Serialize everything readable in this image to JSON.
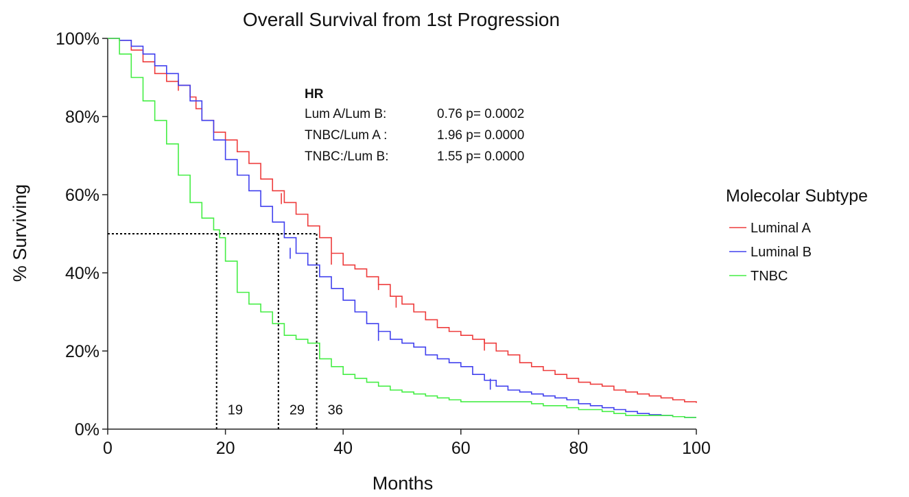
{
  "chart_data": {
    "type": "line",
    "title": "Overall Survival from 1st Progression",
    "xlabel": "Months",
    "ylabel": "% Surviving",
    "xlim": [
      0,
      100
    ],
    "ylim": [
      0,
      100
    ],
    "x_ticks": [
      0,
      20,
      40,
      60,
      80,
      100
    ],
    "y_ticks": [
      0,
      20,
      40,
      60,
      80,
      100
    ],
    "x_tick_labels": [
      "0",
      "20",
      "40",
      "60",
      "80",
      "100"
    ],
    "y_tick_labels": [
      "0%",
      "20%",
      "40%",
      "60%",
      "80%",
      "100%"
    ],
    "legend": {
      "title": "Molecolar Subtype",
      "position": "right"
    },
    "grid": false,
    "series": [
      {
        "name": "Luminal A",
        "color": "#ee3b3b",
        "points": [
          [
            0,
            100
          ],
          [
            2,
            99.5
          ],
          [
            4,
            97
          ],
          [
            6,
            94
          ],
          [
            8,
            91
          ],
          [
            10,
            89
          ],
          [
            12,
            88
          ],
          [
            14,
            85
          ],
          [
            15,
            82
          ],
          [
            16,
            79
          ],
          [
            18,
            76
          ],
          [
            20,
            74
          ],
          [
            22,
            71
          ],
          [
            24,
            68
          ],
          [
            26,
            64
          ],
          [
            28,
            61
          ],
          [
            30,
            58
          ],
          [
            32,
            55
          ],
          [
            34,
            52
          ],
          [
            36,
            49
          ],
          [
            38,
            45
          ],
          [
            40,
            42
          ],
          [
            42,
            41
          ],
          [
            44,
            39
          ],
          [
            46,
            37
          ],
          [
            48,
            34
          ],
          [
            50,
            32
          ],
          [
            52,
            30
          ],
          [
            54,
            28
          ],
          [
            56,
            26
          ],
          [
            58,
            25
          ],
          [
            60,
            24
          ],
          [
            62,
            23
          ],
          [
            64,
            22
          ],
          [
            66,
            20
          ],
          [
            68,
            19
          ],
          [
            70,
            17
          ],
          [
            72,
            16
          ],
          [
            74,
            15
          ],
          [
            76,
            14
          ],
          [
            78,
            13
          ],
          [
            80,
            12
          ],
          [
            82,
            11.5
          ],
          [
            84,
            11
          ],
          [
            86,
            10
          ],
          [
            88,
            9.5
          ],
          [
            90,
            9
          ],
          [
            92,
            8.5
          ],
          [
            94,
            8
          ],
          [
            96,
            7.5
          ],
          [
            98,
            7
          ],
          [
            100,
            6.7
          ]
        ],
        "censor_marks": [
          [
            12,
            88
          ],
          [
            29.5,
            59
          ],
          [
            38,
            43.5
          ],
          [
            46,
            37
          ],
          [
            49,
            32.5
          ],
          [
            64,
            21.5
          ]
        ]
      },
      {
        "name": "Luminal B",
        "color": "#4040ee",
        "points": [
          [
            0,
            100
          ],
          [
            2,
            99.5
          ],
          [
            4,
            98
          ],
          [
            6,
            96
          ],
          [
            8,
            93
          ],
          [
            10,
            91
          ],
          [
            12,
            88
          ],
          [
            14,
            84
          ],
          [
            16,
            79
          ],
          [
            18,
            74
          ],
          [
            20,
            69
          ],
          [
            22,
            65
          ],
          [
            24,
            61
          ],
          [
            26,
            57
          ],
          [
            28,
            53
          ],
          [
            30,
            49
          ],
          [
            32,
            45
          ],
          [
            34,
            42
          ],
          [
            36,
            39
          ],
          [
            38,
            36
          ],
          [
            40,
            33
          ],
          [
            42,
            30
          ],
          [
            44,
            27
          ],
          [
            46,
            25
          ],
          [
            48,
            23
          ],
          [
            50,
            22
          ],
          [
            52,
            21
          ],
          [
            54,
            19
          ],
          [
            56,
            18
          ],
          [
            58,
            17
          ],
          [
            60,
            16
          ],
          [
            62,
            14
          ],
          [
            64,
            12.5
          ],
          [
            66,
            11
          ],
          [
            68,
            10
          ],
          [
            70,
            9.5
          ],
          [
            72,
            9
          ],
          [
            74,
            8.5
          ],
          [
            76,
            8
          ],
          [
            78,
            7.5
          ],
          [
            80,
            6.5
          ],
          [
            82,
            6
          ],
          [
            84,
            5.5
          ],
          [
            86,
            5
          ],
          [
            88,
            4.5
          ],
          [
            90,
            4
          ],
          [
            92,
            3.7
          ],
          [
            94,
            3.5
          ],
          [
            96,
            3.2
          ],
          [
            98,
            3
          ],
          [
            100,
            3
          ]
        ],
        "censor_marks": [
          [
            31,
            45
          ],
          [
            46,
            24
          ],
          [
            65,
            11.5
          ]
        ]
      },
      {
        "name": "TNBC",
        "color": "#44ee44",
        "points": [
          [
            0,
            100
          ],
          [
            2,
            96
          ],
          [
            4,
            90
          ],
          [
            6,
            84
          ],
          [
            8,
            79
          ],
          [
            10,
            73
          ],
          [
            12,
            65
          ],
          [
            14,
            58
          ],
          [
            16,
            54
          ],
          [
            18,
            51
          ],
          [
            19,
            49
          ],
          [
            20,
            43
          ],
          [
            22,
            35
          ],
          [
            24,
            32
          ],
          [
            26,
            30
          ],
          [
            28,
            27
          ],
          [
            30,
            24
          ],
          [
            32,
            23
          ],
          [
            34,
            22
          ],
          [
            36,
            18
          ],
          [
            38,
            16
          ],
          [
            40,
            14
          ],
          [
            42,
            13
          ],
          [
            44,
            12
          ],
          [
            46,
            11
          ],
          [
            48,
            10
          ],
          [
            50,
            9.5
          ],
          [
            52,
            9
          ],
          [
            54,
            8.5
          ],
          [
            56,
            8
          ],
          [
            58,
            7.5
          ],
          [
            60,
            7
          ],
          [
            62,
            7
          ],
          [
            64,
            7
          ],
          [
            66,
            7
          ],
          [
            68,
            7
          ],
          [
            70,
            7
          ],
          [
            72,
            6.5
          ],
          [
            74,
            6
          ],
          [
            76,
            6
          ],
          [
            78,
            5.5
          ],
          [
            80,
            5
          ],
          [
            82,
            5
          ],
          [
            84,
            4.5
          ],
          [
            86,
            4
          ],
          [
            88,
            3.5
          ],
          [
            90,
            3.5
          ],
          [
            92,
            3.5
          ],
          [
            94,
            3.5
          ],
          [
            96,
            3.2
          ],
          [
            98,
            3
          ],
          [
            100,
            3
          ]
        ],
        "censor_marks": []
      }
    ],
    "medians": [
      {
        "label": "19",
        "x": 18.5
      },
      {
        "label": "29",
        "x": 29
      },
      {
        "label": "36",
        "x": 35.5
      }
    ],
    "median_level": 50,
    "annotation": {
      "title": "HR",
      "rows": [
        {
          "label": "Lum A/Lum B:",
          "value": "0.76 p= 0.0002"
        },
        {
          "label": "TNBC/Lum A :",
          "value": "1.96 p= 0.0000"
        },
        {
          "label": "TNBC:/Lum B:",
          "value": "1.55 p= 0.0000"
        }
      ]
    }
  }
}
